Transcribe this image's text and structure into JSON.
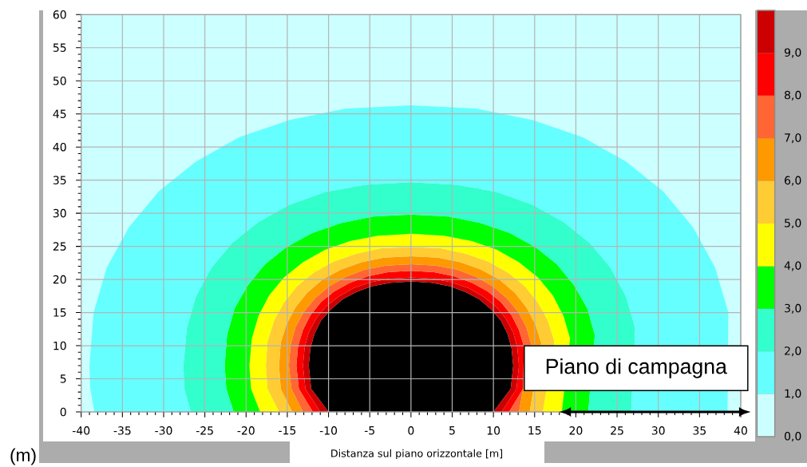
{
  "chart_data": {
    "type": "area",
    "xlabel": "Distanza sul piano orizzontale [m]",
    "ylabel": "(m)",
    "xlim": [
      -40,
      40
    ],
    "ylim": [
      0,
      60
    ],
    "xticks": [
      -40,
      -35,
      -30,
      -25,
      -20,
      -15,
      -10,
      -5,
      0,
      5,
      10,
      15,
      20,
      25,
      30,
      35,
      40
    ],
    "yticks": [
      0,
      5,
      10,
      15,
      20,
      25,
      30,
      35,
      40,
      45,
      50,
      55,
      60
    ],
    "grid": true,
    "clim": [
      0,
      10
    ],
    "cticks": [
      {
        "value": 0,
        "label": "0,0"
      },
      {
        "value": 1,
        "label": "1,0"
      },
      {
        "value": 2,
        "label": "2,0"
      },
      {
        "value": 3,
        "label": "3,0"
      },
      {
        "value": 4,
        "label": "4,0"
      },
      {
        "value": 5,
        "label": "5,0"
      },
      {
        "value": 6,
        "label": "6,0"
      },
      {
        "value": 7,
        "label": "7,0"
      },
      {
        "value": 8,
        "label": "8,0"
      },
      {
        "value": 9,
        "label": "9,0"
      }
    ],
    "bands": [
      {
        "axis": "y",
        "from": 0,
        "to": 60,
        "color": "#ccffff"
      }
    ],
    "series": [
      {
        "color": "#66ffff",
        "x": [
          -38.4,
          -38.9,
          -39.0,
          -38.5,
          -36.9,
          -34.2,
          -30.6,
          -26.1,
          -20.8,
          -14.7,
          -7.9,
          0,
          7.9,
          14.7,
          20.8,
          26.1,
          30.6,
          34.2,
          36.9,
          38.5,
          38.4,
          26.7,
          27.2,
          26.1,
          24.2,
          21.7,
          18.5,
          14.7,
          10.4,
          5.6,
          0,
          -5.6,
          -10.4,
          -14.7,
          -18.5,
          -21.7,
          -24.2,
          -26.1,
          -27.2,
          -27.6,
          -27.5,
          -26.7
        ],
        "values": [
          0,
          3.5,
          7,
          15.0,
          21.8,
          27.9,
          33.3,
          37.8,
          41.5,
          44.1,
          45.8,
          46.3,
          45.8,
          44.1,
          41.5,
          37.8,
          33.3,
          27.9,
          21.8,
          15.0,
          0,
          0,
          12.6,
          17.4,
          21.8,
          25.5,
          28.7,
          31.3,
          33.2,
          34.3,
          34.7,
          34.3,
          33.2,
          31.3,
          28.7,
          25.5,
          21.8,
          17.4,
          12.6,
          7,
          3.5,
          0
        ]
      },
      {
        "color": "#33ffcc",
        "x": [
          -26.7,
          -27.5,
          -27.6,
          -27.2,
          -26.1,
          -24.2,
          -21.7,
          -18.5,
          -14.7,
          -10.4,
          -5.6,
          0,
          5.6,
          10.4,
          14.7,
          18.5,
          21.7,
          24.2,
          26.1,
          27.2,
          26.7,
          21.5,
          22.3,
          21.4,
          19.8,
          17.7,
          15.1,
          12.0,
          8.5,
          4.6,
          0,
          -4.6,
          -8.5,
          -12.0,
          -15.1,
          -17.7,
          -19.8,
          -21.4,
          -22.3,
          -22.6,
          -22.4,
          -21.5
        ],
        "values": [
          0,
          3.5,
          7,
          12.6,
          17.4,
          21.8,
          25.5,
          28.7,
          31.3,
          33.2,
          34.3,
          34.7,
          34.3,
          33.2,
          31.3,
          28.7,
          25.5,
          21.8,
          17.4,
          12.6,
          0,
          0,
          11.6,
          15.6,
          19.1,
          22.3,
          24.9,
          27.0,
          28.5,
          29.5,
          29.8,
          29.5,
          28.5,
          27.0,
          24.9,
          22.3,
          19.1,
          15.6,
          11.6,
          7,
          3.5,
          0
        ]
      },
      {
        "color": "#00ff00",
        "x": [
          -21.5,
          -22.4,
          -22.6,
          -22.3,
          -21.4,
          -19.8,
          -17.7,
          -15.1,
          -12.0,
          -8.5,
          -4.6,
          0,
          4.6,
          8.5,
          12.0,
          15.1,
          17.7,
          19.8,
          21.4,
          22.3,
          21.5,
          18.3,
          19.3,
          18.5,
          17.2,
          15.4,
          13.1,
          10.4,
          7.4,
          4.0,
          0,
          -4.0,
          -7.4,
          -10.4,
          -13.1,
          -15.4,
          -17.2,
          -18.5,
          -19.3,
          -19.6,
          -19.4,
          -18.3
        ],
        "values": [
          0,
          3.5,
          7,
          11.6,
          15.6,
          19.1,
          22.3,
          24.9,
          27.0,
          28.5,
          29.5,
          29.8,
          29.5,
          28.5,
          27.0,
          24.9,
          22.3,
          19.1,
          15.6,
          11.6,
          0,
          0,
          11.1,
          14.5,
          17.6,
          20.3,
          22.6,
          24.5,
          25.8,
          26.6,
          26.9,
          26.6,
          25.8,
          24.5,
          22.6,
          20.3,
          17.6,
          14.5,
          11.1,
          7,
          3.5,
          0
        ]
      },
      {
        "color": "#ffff00",
        "x": [
          -18.3,
          -19.4,
          -19.6,
          -19.3,
          -18.5,
          -17.2,
          -15.4,
          -13.1,
          -10.4,
          -7.4,
          -4.0,
          0,
          4.0,
          7.4,
          10.4,
          13.1,
          15.4,
          17.2,
          18.5,
          19.3,
          18.3,
          16.0,
          17.4,
          16.6,
          15.4,
          13.8,
          11.8,
          9.4,
          6.6,
          3.6,
          0,
          -3.6,
          -6.6,
          -9.4,
          -11.8,
          -13.8,
          -15.4,
          -16.6,
          -17.4,
          -17.6,
          -17.4,
          -16.0
        ],
        "values": [
          0,
          3.5,
          7,
          11.1,
          14.5,
          17.6,
          20.3,
          22.6,
          24.5,
          25.8,
          26.6,
          26.9,
          26.6,
          25.8,
          24.5,
          22.6,
          20.3,
          17.6,
          14.5,
          11.1,
          0,
          0,
          10.6,
          13.8,
          16.5,
          19.0,
          21.0,
          22.7,
          23.9,
          24.7,
          24.9,
          24.7,
          23.9,
          22.7,
          21.0,
          19.0,
          16.5,
          13.8,
          10.6,
          7,
          3.5,
          0
        ]
      },
      {
        "color": "#ffcc33",
        "x": [
          -16.0,
          -17.4,
          -17.6,
          -17.4,
          -16.6,
          -15.4,
          -13.8,
          -11.8,
          -9.4,
          -6.6,
          -3.6,
          0,
          3.6,
          6.6,
          9.4,
          11.8,
          13.8,
          15.4,
          16.6,
          17.4,
          16.0,
          14.4,
          15.8,
          15.1,
          14.0,
          12.6,
          10.7,
          8.5,
          6.0,
          3.3,
          0,
          -3.3,
          -6.0,
          -8.5,
          -10.7,
          -12.6,
          -14.0,
          -15.1,
          -15.8,
          -16.0,
          -15.8,
          -14.4
        ],
        "values": [
          0,
          3.5,
          7,
          10.6,
          13.8,
          16.5,
          19.0,
          21.0,
          22.7,
          23.9,
          24.7,
          24.9,
          24.7,
          23.9,
          22.7,
          21.0,
          19.0,
          16.5,
          13.8,
          10.6,
          0,
          0,
          10.4,
          13.2,
          15.8,
          18.0,
          20.0,
          21.5,
          22.6,
          23.3,
          23.5,
          23.3,
          22.6,
          21.5,
          20.0,
          18.0,
          15.8,
          13.2,
          10.4,
          7,
          3.5,
          0
        ]
      },
      {
        "color": "#ff9900",
        "x": [
          -14.4,
          -15.8,
          -16.0,
          -15.8,
          -15.1,
          -14.0,
          -12.6,
          -10.7,
          -8.5,
          -6.0,
          -3.3,
          0,
          3.3,
          6.0,
          8.5,
          10.7,
          12.6,
          14.0,
          15.1,
          15.8,
          14.4,
          13.1,
          14.6,
          14.0,
          13.0,
          11.6,
          9.9,
          7.9,
          5.6,
          3.0,
          0,
          -3.0,
          -5.6,
          -7.9,
          -9.9,
          -11.6,
          -13.0,
          -14.0,
          -14.6,
          -14.8,
          -14.5,
          -13.1
        ],
        "values": [
          0,
          3.5,
          7,
          10.4,
          13.2,
          15.8,
          18.0,
          20.0,
          21.5,
          22.6,
          23.3,
          23.5,
          23.3,
          22.6,
          21.5,
          20.0,
          18.0,
          15.8,
          13.2,
          10.4,
          0,
          0,
          10.1,
          12.8,
          15.1,
          17.2,
          19.0,
          20.4,
          21.5,
          22.1,
          22.3,
          22.1,
          21.5,
          20.4,
          19.0,
          17.2,
          15.1,
          12.8,
          10.1,
          7,
          3.5,
          0
        ]
      },
      {
        "color": "#ff6633",
        "x": [
          -13.1,
          -14.5,
          -14.8,
          -14.6,
          -14.0,
          -13.0,
          -11.6,
          -9.9,
          -7.9,
          -5.6,
          -3.0,
          0,
          3.0,
          5.6,
          7.9,
          9.9,
          11.6,
          13.0,
          14.0,
          14.6,
          13.1,
          11.9,
          13.6,
          13.7,
          13.1,
          12.2,
          10.9,
          9.3,
          7.4,
          5.2,
          2.8,
          0,
          -2.8,
          -5.2,
          -7.4,
          -9.3,
          -10.9,
          -12.2,
          -13.1,
          -13.7,
          -13.9,
          -13.6,
          -11.9
        ],
        "values": [
          0,
          3.5,
          7,
          10.1,
          12.8,
          15.1,
          17.2,
          19.0,
          20.4,
          21.5,
          22.1,
          22.3,
          22.1,
          21.5,
          20.4,
          19.0,
          17.2,
          15.1,
          12.8,
          10.1,
          0,
          0,
          3.5,
          9.9,
          12.4,
          14.6,
          16.6,
          18.2,
          19.5,
          20.5,
          21.1,
          21.3,
          21.1,
          20.5,
          19.5,
          18.2,
          16.6,
          14.6,
          12.4,
          9.9,
          7,
          3.5,
          0
        ]
      },
      {
        "color": "#ff0000",
        "x": [
          -11.9,
          -13.6,
          -13.9,
          -13.7,
          -13.1,
          -12.2,
          -10.9,
          -9.3,
          -7.4,
          -5.2,
          -2.8,
          0,
          2.8,
          5.2,
          7.4,
          9.3,
          10.9,
          12.2,
          13.1,
          13.7,
          13.6,
          11.9,
          11.0,
          12.8,
          13.1,
          12.9,
          12.4,
          11.5,
          10.3,
          8.8,
          7.0,
          4.9,
          2.7,
          0,
          -2.7,
          -4.9,
          -7.0,
          -8.8,
          -10.3,
          -11.5,
          -12.4,
          -12.9,
          -13.1,
          -12.8,
          -11.0
        ],
        "values": [
          0,
          3.5,
          7,
          9.9,
          12.4,
          14.6,
          16.6,
          18.2,
          19.5,
          20.5,
          21.1,
          21.3,
          21.1,
          20.5,
          19.5,
          18.2,
          16.6,
          14.6,
          12.4,
          9.9,
          3.5,
          0,
          0,
          3.5,
          7,
          9.7,
          12.0,
          14.1,
          15.9,
          17.4,
          18.7,
          19.6,
          20.1,
          20.3,
          20.1,
          19.6,
          18.7,
          17.4,
          15.9,
          14.1,
          12.0,
          9.7,
          7,
          3.5,
          0
        ]
      },
      {
        "color": "#cc0000",
        "x": [
          -11.0,
          -12.8,
          -13.1,
          -12.9,
          -12.4,
          -11.5,
          -10.3,
          -8.8,
          -7.0,
          -4.9,
          -2.7,
          0,
          2.7,
          4.9,
          7.0,
          8.8,
          10.3,
          11.5,
          12.4,
          12.9,
          13.1,
          12.8,
          11.0,
          10.0,
          12.1,
          12.4,
          12.2,
          11.7,
          10.9,
          9.7,
          8.3,
          6.6,
          4.7,
          2.5,
          0,
          -2.5,
          -4.7,
          -6.6,
          -8.3,
          -9.7,
          -10.9,
          -11.7,
          -12.2,
          -12.4,
          -12.1,
          -10.0
        ],
        "values": [
          0,
          3.5,
          7,
          9.7,
          12.0,
          14.1,
          15.9,
          17.4,
          18.7,
          19.6,
          20.1,
          20.3,
          20.1,
          19.6,
          18.7,
          17.4,
          15.9,
          14.1,
          12.0,
          9.7,
          7,
          3.5,
          0,
          0,
          3.5,
          7,
          9.6,
          11.8,
          13.8,
          15.5,
          17.0,
          18.1,
          19.0,
          19.5,
          19.7,
          19.5,
          19.0,
          18.1,
          17.0,
          15.5,
          13.8,
          11.8,
          9.6,
          7,
          3.5,
          0
        ]
      },
      {
        "color": "#000000",
        "x": [
          -10.0,
          -12.1,
          -12.4,
          -12.2,
          -11.7,
          -10.9,
          -9.7,
          -8.3,
          -6.6,
          -4.7,
          -2.5,
          0,
          2.5,
          4.7,
          6.6,
          8.3,
          9.7,
          10.9,
          11.7,
          12.2,
          12.4,
          12.1,
          10.0
        ],
        "values": [
          0,
          3.5,
          7,
          9.6,
          11.8,
          13.8,
          15.5,
          17.0,
          18.1,
          19.0,
          19.5,
          19.7,
          19.5,
          19.0,
          18.1,
          17.0,
          15.5,
          13.8,
          11.8,
          9.6,
          7,
          3.5,
          0
        ]
      }
    ],
    "annotations": [
      {
        "text": "Piano di campagna",
        "x": 29.6,
        "y": 0
      }
    ]
  }
}
